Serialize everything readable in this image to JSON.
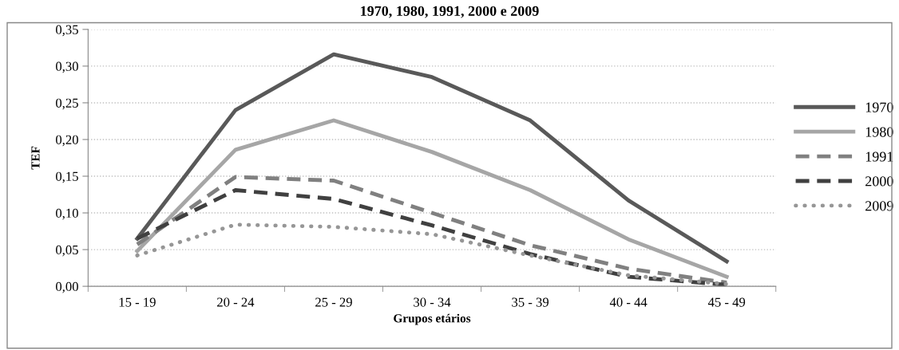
{
  "chart_data": {
    "type": "line",
    "title": "1970, 1980, 1991, 2000 e 2009",
    "xlabel": "Grupos etários",
    "ylabel": "TEF",
    "categories": [
      "15 - 19",
      "20 - 24",
      "25 - 29",
      "30 - 34",
      "35 - 39",
      "40 - 44",
      "45 - 49"
    ],
    "series": [
      {
        "name": "1970",
        "color": "#595959",
        "line_style": "solid",
        "values": [
          0.065,
          0.24,
          0.316,
          0.285,
          0.226,
          0.117,
          0.034
        ]
      },
      {
        "name": "1980",
        "color": "#a6a6a6",
        "line_style": "solid",
        "values": [
          0.048,
          0.186,
          0.226,
          0.183,
          0.131,
          0.064,
          0.013
        ]
      },
      {
        "name": "1991",
        "color": "#808080",
        "line_style": "dashed",
        "values": [
          0.057,
          0.149,
          0.144,
          0.1,
          0.056,
          0.024,
          0.005
        ]
      },
      {
        "name": "2000",
        "color": "#404040",
        "line_style": "dashed",
        "values": [
          0.065,
          0.131,
          0.119,
          0.083,
          0.044,
          0.013,
          0.002
        ]
      },
      {
        "name": "2009",
        "color": "#969696",
        "line_style": "dotted",
        "values": [
          0.042,
          0.084,
          0.081,
          0.071,
          0.042,
          0.015,
          0.003
        ]
      }
    ],
    "ylim": [
      0,
      0.35
    ],
    "yticks": [
      {
        "value": 0,
        "label": "0,00"
      },
      {
        "value": 0.05,
        "label": "0,05"
      },
      {
        "value": 0.1,
        "label": "0,10"
      },
      {
        "value": 0.15,
        "label": "0,15"
      },
      {
        "value": 0.2,
        "label": "0,20"
      },
      {
        "value": 0.25,
        "label": "0,25"
      },
      {
        "value": 0.3,
        "label": "0,30"
      },
      {
        "value": 0.35,
        "label": "0,35"
      }
    ],
    "grid": "y",
    "legend": "right",
    "marker": "none"
  }
}
